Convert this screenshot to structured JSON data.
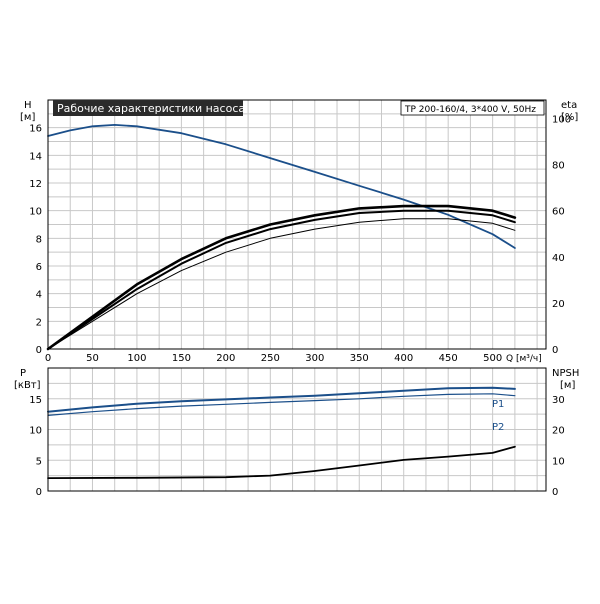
{
  "chart_data": [
    {
      "type": "line",
      "title": "Рабочие характеристики насоса",
      "model_label": "TP 200-160/4, 3*400 V, 50Hz",
      "left_axis": {
        "label": "H",
        "unit": "[м]",
        "range": [
          0,
          18
        ],
        "ticks": [
          0,
          2,
          4,
          6,
          8,
          10,
          12,
          14,
          16
        ]
      },
      "right_axis": {
        "label": "eta",
        "unit": "[%]",
        "range": [
          0,
          108
        ],
        "ticks": [
          0,
          20,
          40,
          60,
          80,
          100
        ]
      },
      "x_axis": {
        "label": "Q [м³/ч]",
        "range": [
          0,
          560
        ],
        "ticks": [
          0,
          50,
          100,
          150,
          200,
          250,
          300,
          350,
          400,
          450,
          500
        ]
      },
      "grid": true,
      "series": [
        {
          "axis": "left",
          "color": "#1b4f8a",
          "x": [
            0,
            25,
            50,
            75,
            100,
            150,
            200,
            250,
            300,
            350,
            400,
            450,
            500,
            525
          ],
          "y": [
            15.4,
            15.8,
            16.1,
            16.2,
            16.1,
            15.6,
            14.8,
            13.8,
            12.8,
            11.8,
            10.8,
            9.7,
            8.3,
            7.3
          ]
        },
        {
          "axis": "right",
          "color": "#000000",
          "x": [
            0,
            50,
            100,
            150,
            200,
            250,
            300,
            350,
            400,
            450,
            500,
            525
          ],
          "y": [
            0,
            13,
            26,
            37,
            46,
            52,
            56,
            59,
            60,
            60,
            58,
            55
          ]
        },
        {
          "axis": "right",
          "color": "#000000",
          "x": [
            0,
            50,
            100,
            150,
            200,
            250,
            300,
            350,
            400,
            450,
            500,
            525
          ],
          "y": [
            0,
            12,
            24,
            34,
            42,
            48,
            52,
            55,
            56.5,
            56.5,
            54.5,
            51.5
          ]
        },
        {
          "axis": "right",
          "color": "#000000",
          "x": [
            0,
            50,
            100,
            150,
            200,
            250,
            300,
            350,
            400,
            450,
            500,
            525
          ],
          "y": [
            0,
            14,
            28,
            39,
            48,
            54,
            58,
            61,
            62,
            62,
            60,
            57
          ]
        }
      ]
    },
    {
      "type": "line",
      "left_axis": {
        "label": "P",
        "unit": "[кВт]",
        "range": [
          0,
          20
        ],
        "ticks": [
          0,
          5,
          10,
          15
        ]
      },
      "right_axis": {
        "label": "NPSH",
        "unit": "[м]",
        "range": [
          0,
          40
        ],
        "ticks": [
          0,
          10,
          20,
          30
        ]
      },
      "x_axis": {
        "range": [
          0,
          560
        ]
      },
      "grid": true,
      "series": [
        {
          "name": "P1",
          "axis": "left",
          "color": "#1b4f8a",
          "x": [
            0,
            50,
            100,
            150,
            200,
            250,
            300,
            350,
            400,
            450,
            500,
            525
          ],
          "y": [
            12.9,
            13.6,
            14.2,
            14.6,
            14.9,
            15.2,
            15.5,
            15.9,
            16.3,
            16.7,
            16.8,
            16.6
          ]
        },
        {
          "name": "P2",
          "axis": "left",
          "color": "#1b4f8a",
          "x": [
            0,
            50,
            100,
            150,
            200,
            250,
            300,
            350,
            400,
            450,
            500,
            525
          ],
          "y": [
            12.3,
            12.9,
            13.4,
            13.8,
            14.1,
            14.4,
            14.7,
            15.0,
            15.4,
            15.7,
            15.8,
            15.5
          ]
        },
        {
          "axis": "right",
          "color": "#000000",
          "x": [
            0,
            100,
            200,
            250,
            300,
            350,
            400,
            450,
            500,
            525
          ],
          "y": [
            4.2,
            4.3,
            4.5,
            5.0,
            6.5,
            8.3,
            10.1,
            11.2,
            12.4,
            14.4
          ]
        }
      ]
    }
  ]
}
